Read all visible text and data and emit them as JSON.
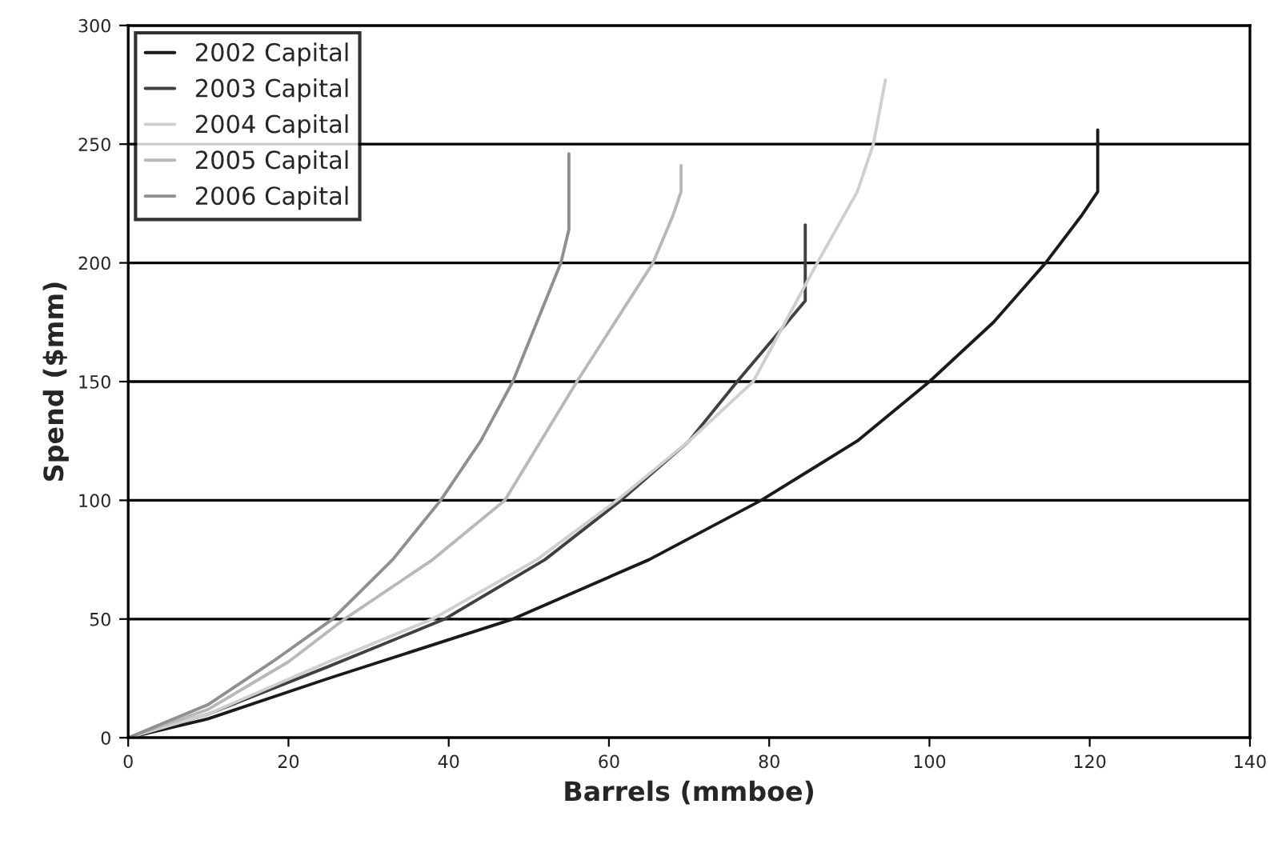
{
  "chart_data": {
    "type": "line",
    "xlabel": "Barrels (mmboe)",
    "ylabel": "Spend ($mm)",
    "xlim": [
      0,
      140
    ],
    "xticks": [
      0,
      20,
      40,
      60,
      80,
      100,
      120,
      140
    ],
    "ylim": [
      0,
      300
    ],
    "yticks": [
      0,
      50,
      100,
      150,
      200,
      250,
      300
    ],
    "grid": "y",
    "legend": "top left",
    "line_style": "solid",
    "marker": "none",
    "series": [
      {
        "name": "2002 Capital",
        "color": "#1a1a1a",
        "x": [
          0,
          10,
          25,
          48,
          65,
          79,
          91,
          100,
          108,
          114.5,
          119,
          121,
          121
        ],
        "values": [
          0,
          8,
          25,
          50,
          75,
          100,
          125,
          150,
          175,
          200,
          220,
          230,
          256
        ]
      },
      {
        "name": "2003 Capital",
        "color": "#404040",
        "x": [
          0,
          10,
          25,
          39.5,
          52,
          61.5,
          70,
          76,
          81,
          84.5,
          84.5
        ],
        "values": [
          0,
          10,
          30,
          50,
          75,
          100,
          125,
          150,
          170,
          184,
          216
        ]
      },
      {
        "name": "2004 Capital",
        "color": "#cfcfcf",
        "x": [
          0,
          10,
          25,
          38,
          51,
          61,
          70,
          78,
          86,
          91,
          93,
          94.5
        ],
        "values": [
          0,
          10,
          32,
          50,
          75,
          100,
          125,
          150,
          200,
          230,
          250,
          277
        ]
      },
      {
        "name": "2005 Capital",
        "color": "#b8b8b8",
        "x": [
          0,
          10,
          20,
          27,
          38,
          47,
          56,
          65.5,
          68,
          69,
          69
        ],
        "values": [
          0,
          12,
          32,
          50,
          75,
          100,
          150,
          200,
          220,
          230,
          241
        ]
      },
      {
        "name": "2006 Capital",
        "color": "#8f8f8f",
        "x": [
          0,
          10,
          18,
          25.5,
          33,
          39,
          44,
          48,
          51,
          54,
          55,
          55
        ],
        "values": [
          0,
          14,
          32,
          50,
          75,
          100,
          125,
          150,
          175,
          200,
          214,
          246
        ]
      }
    ]
  }
}
